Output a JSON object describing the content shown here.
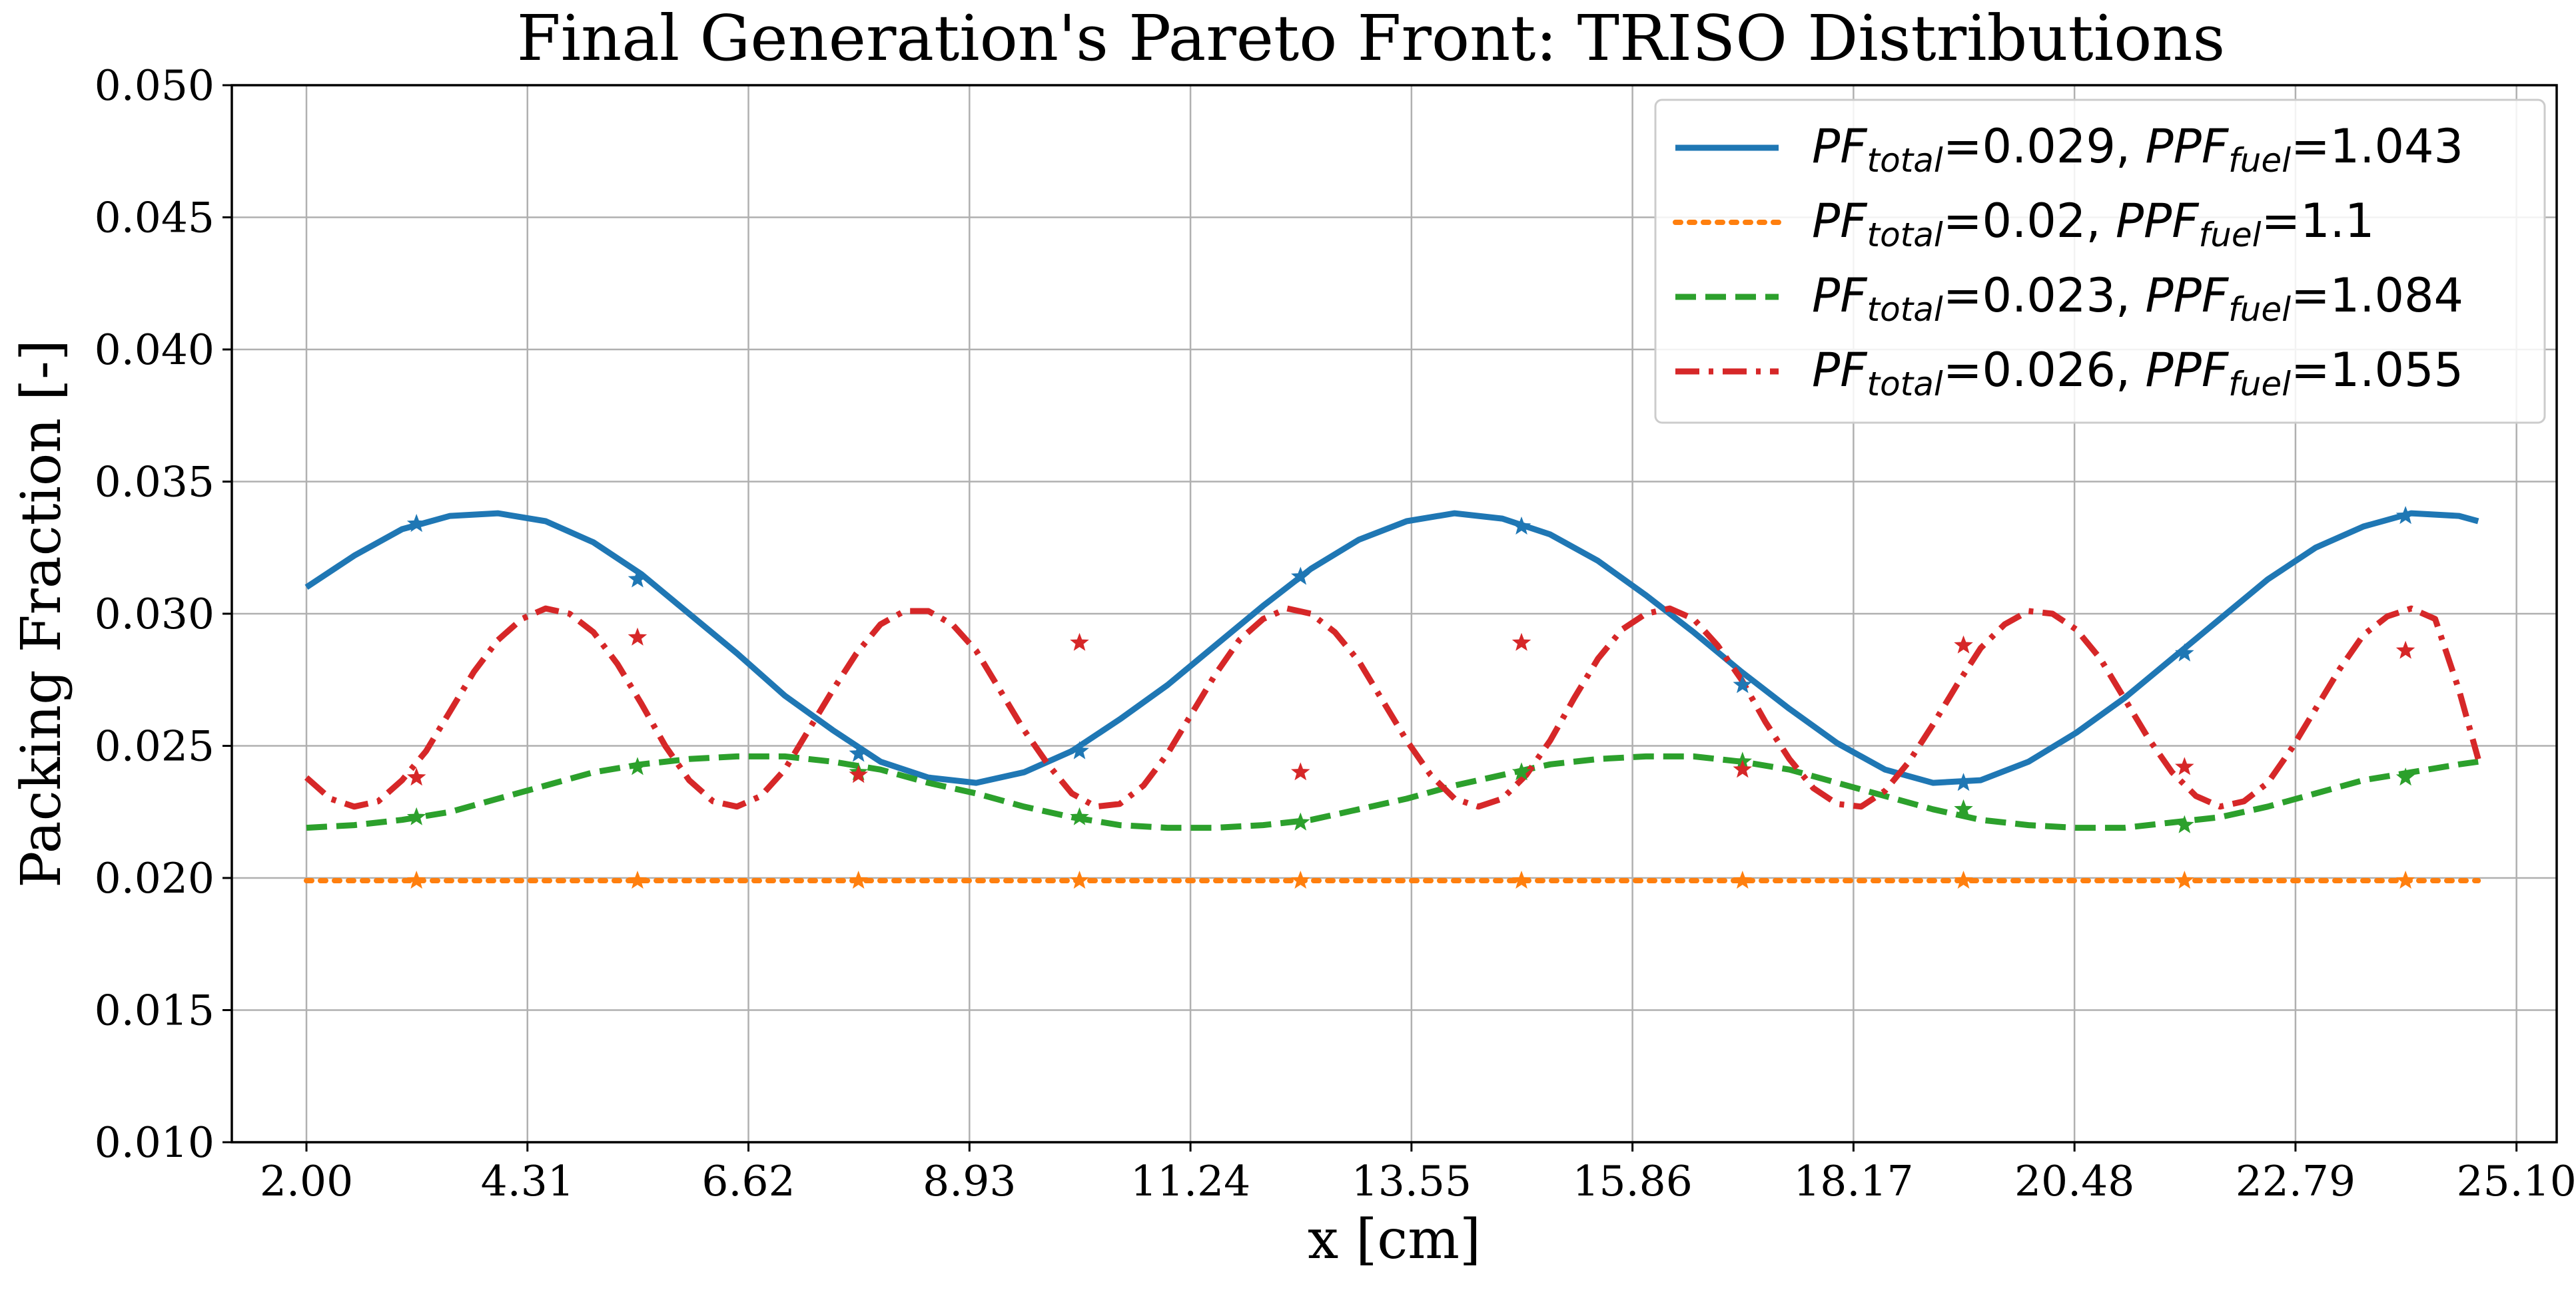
{
  "chart_data": {
    "type": "line",
    "title": "Final Generation's Pareto Front: TRISO Distributions",
    "xlabel": "x [cm]",
    "ylabel": "Packing Fraction [-]",
    "xlim": [
      1.22,
      25.52
    ],
    "ylim": [
      0.01,
      0.05
    ],
    "x_ticks": [
      2.0,
      4.31,
      6.62,
      8.93,
      11.24,
      13.55,
      15.86,
      18.17,
      20.48,
      22.79,
      25.1
    ],
    "x_tick_labels": [
      "2.00",
      "4.31",
      "6.62",
      "8.93",
      "11.24",
      "13.55",
      "15.86",
      "18.17",
      "20.48",
      "22.79",
      "25.10"
    ],
    "y_ticks": [
      0.01,
      0.015,
      0.02,
      0.025,
      0.03,
      0.035,
      0.04,
      0.045,
      0.05
    ],
    "y_tick_labels": [
      "0.010",
      "0.015",
      "0.020",
      "0.025",
      "0.030",
      "0.035",
      "0.040",
      "0.045",
      "0.050"
    ],
    "grid": true,
    "legend_position": "top-right",
    "marker_x": [
      3.15,
      5.46,
      7.77,
      10.08,
      12.39,
      14.7,
      17.01,
      19.32,
      21.63,
      23.94
    ],
    "series": [
      {
        "name_parts": [
          {
            "text": "PF",
            "style": "italic"
          },
          {
            "text": "total",
            "style": "italic-sub"
          },
          {
            "text": "=0.029, ",
            "style": "normal"
          },
          {
            "text": "PPF",
            "style": "italic"
          },
          {
            "text": "fuel",
            "style": "italic-sub"
          },
          {
            "text": "=1.043",
            "style": "normal"
          }
        ],
        "color": "#1f77b4",
        "linestyle": "solid",
        "x": [
          2.0,
          2.5,
          3.0,
          3.5,
          4.0,
          4.5,
          5.0,
          5.5,
          6.0,
          6.5,
          7.0,
          7.5,
          8.0,
          8.5,
          9.0,
          9.5,
          10.0,
          10.5,
          11.0,
          11.5,
          12.0,
          12.5,
          13.0,
          13.5,
          14.0,
          14.5,
          15.0,
          15.5,
          16.0,
          16.5,
          17.0,
          17.5,
          18.0,
          18.5,
          19.0,
          19.5,
          20.0,
          20.5,
          21.0,
          21.5,
          22.0,
          22.5,
          23.0,
          23.5,
          24.0,
          24.5,
          24.7
        ],
        "y": [
          0.031,
          0.0322,
          0.0332,
          0.0337,
          0.0338,
          0.0335,
          0.0327,
          0.0315,
          0.03,
          0.0285,
          0.0269,
          0.0256,
          0.0244,
          0.0238,
          0.0236,
          0.024,
          0.0248,
          0.026,
          0.0273,
          0.0288,
          0.0303,
          0.0317,
          0.0328,
          0.0335,
          0.0338,
          0.0336,
          0.033,
          0.032,
          0.0307,
          0.0293,
          0.0278,
          0.0264,
          0.0251,
          0.0241,
          0.0236,
          0.0237,
          0.0244,
          0.0255,
          0.0268,
          0.0283,
          0.0298,
          0.0313,
          0.0325,
          0.0333,
          0.0338,
          0.0337,
          0.0335
        ],
        "marker_y": [
          0.0334,
          0.0313,
          0.0247,
          0.0248,
          0.0314,
          0.0333,
          0.0273,
          0.0236,
          0.0285,
          0.0337
        ]
      },
      {
        "name_parts": [
          {
            "text": "PF",
            "style": "italic"
          },
          {
            "text": "total",
            "style": "italic-sub"
          },
          {
            "text": "=0.02, ",
            "style": "normal"
          },
          {
            "text": "PPF",
            "style": "italic"
          },
          {
            "text": "fuel",
            "style": "italic-sub"
          },
          {
            "text": "=1.1",
            "style": "normal"
          }
        ],
        "color": "#ff7f0e",
        "linestyle": "dotted",
        "x": [
          2.0,
          24.7
        ],
        "y": [
          0.0199,
          0.0199
        ],
        "marker_y": [
          0.0199,
          0.0199,
          0.0199,
          0.0199,
          0.0199,
          0.0199,
          0.0199,
          0.0199,
          0.0199,
          0.0199
        ]
      },
      {
        "name_parts": [
          {
            "text": "PF",
            "style": "italic"
          },
          {
            "text": "total",
            "style": "italic-sub"
          },
          {
            "text": "=0.023, ",
            "style": "normal"
          },
          {
            "text": "PPF",
            "style": "italic"
          },
          {
            "text": "fuel",
            "style": "italic-sub"
          },
          {
            "text": "=1.084",
            "style": "normal"
          }
        ],
        "color": "#2ca02c",
        "linestyle": "dashed",
        "x": [
          2.0,
          2.5,
          3.0,
          3.5,
          4.0,
          4.5,
          5.0,
          5.5,
          6.0,
          6.5,
          7.0,
          7.5,
          8.0,
          8.5,
          9.0,
          9.5,
          10.0,
          10.5,
          11.0,
          11.5,
          12.0,
          12.5,
          13.0,
          13.5,
          14.0,
          14.5,
          15.0,
          15.5,
          16.0,
          16.5,
          17.0,
          17.5,
          18.0,
          18.5,
          19.0,
          19.5,
          20.0,
          20.5,
          21.0,
          21.5,
          22.0,
          22.5,
          23.0,
          23.5,
          24.0,
          24.5,
          24.7
        ],
        "y": [
          0.0219,
          0.022,
          0.0222,
          0.0225,
          0.023,
          0.0235,
          0.024,
          0.0243,
          0.0245,
          0.0246,
          0.0246,
          0.0244,
          0.0241,
          0.0236,
          0.0232,
          0.0227,
          0.0223,
          0.022,
          0.0219,
          0.0219,
          0.022,
          0.0222,
          0.0226,
          0.023,
          0.0235,
          0.0239,
          0.0243,
          0.0245,
          0.0246,
          0.0246,
          0.0244,
          0.0241,
          0.0236,
          0.0231,
          0.0226,
          0.0222,
          0.022,
          0.0219,
          0.0219,
          0.0221,
          0.0223,
          0.0227,
          0.0232,
          0.0237,
          0.024,
          0.0243,
          0.0244
        ],
        "marker_y": [
          0.0223,
          0.0242,
          0.024,
          0.0223,
          0.0221,
          0.024,
          0.0244,
          0.0226,
          0.022,
          0.0238
        ]
      },
      {
        "name_parts": [
          {
            "text": "PF",
            "style": "italic"
          },
          {
            "text": "total",
            "style": "italic-sub"
          },
          {
            "text": "=0.026, ",
            "style": "normal"
          },
          {
            "text": "PPF",
            "style": "italic"
          },
          {
            "text": "fuel",
            "style": "italic-sub"
          },
          {
            "text": "=1.055",
            "style": "normal"
          }
        ],
        "color": "#d62728",
        "linestyle": "dashdot",
        "x": [
          2.0,
          2.25,
          2.5,
          2.75,
          3.0,
          3.25,
          3.5,
          3.75,
          4.0,
          4.25,
          4.5,
          4.75,
          5.0,
          5.25,
          5.5,
          5.75,
          6.0,
          6.25,
          6.5,
          6.75,
          7.0,
          7.25,
          7.5,
          7.75,
          8.0,
          8.25,
          8.5,
          8.75,
          9.0,
          9.25,
          9.5,
          9.75,
          10.0,
          10.25,
          10.5,
          10.75,
          11.0,
          11.25,
          11.5,
          11.75,
          12.0,
          12.25,
          12.5,
          12.75,
          13.0,
          13.25,
          13.5,
          13.75,
          14.0,
          14.25,
          14.5,
          14.75,
          15.0,
          15.25,
          15.5,
          15.75,
          16.0,
          16.25,
          16.5,
          16.75,
          17.0,
          17.25,
          17.5,
          17.75,
          18.0,
          18.25,
          18.5,
          18.75,
          19.0,
          19.25,
          19.5,
          19.75,
          20.0,
          20.25,
          20.5,
          20.75,
          21.0,
          21.25,
          21.5,
          21.75,
          22.0,
          22.25,
          22.5,
          22.75,
          23.0,
          23.25,
          23.5,
          23.75,
          24.0,
          24.25,
          24.5,
          24.7
        ],
        "y": [
          0.0238,
          0.023,
          0.0227,
          0.0229,
          0.0237,
          0.0248,
          0.0263,
          0.0278,
          0.029,
          0.0298,
          0.0302,
          0.03,
          0.0293,
          0.0281,
          0.0266,
          0.025,
          0.0237,
          0.0229,
          0.0227,
          0.0231,
          0.0241,
          0.0256,
          0.0271,
          0.0285,
          0.0296,
          0.0301,
          0.0301,
          0.0296,
          0.0286,
          0.0271,
          0.0256,
          0.0243,
          0.0232,
          0.0227,
          0.0228,
          0.0235,
          0.0247,
          0.0262,
          0.0277,
          0.029,
          0.0298,
          0.0302,
          0.03,
          0.0293,
          0.0282,
          0.0267,
          0.0252,
          0.0239,
          0.023,
          0.0227,
          0.023,
          0.0239,
          0.0252,
          0.0268,
          0.0283,
          0.0294,
          0.03,
          0.0302,
          0.0298,
          0.0288,
          0.0275,
          0.0259,
          0.0245,
          0.0234,
          0.0228,
          0.0227,
          0.0233,
          0.0244,
          0.0258,
          0.0273,
          0.0287,
          0.0296,
          0.0301,
          0.03,
          0.0294,
          0.0283,
          0.0268,
          0.0253,
          0.024,
          0.0231,
          0.0227,
          0.0229,
          0.0236,
          0.0249,
          0.0264,
          0.0279,
          0.0292,
          0.0299,
          0.0302,
          0.0298,
          0.0271,
          0.0245
        ],
        "marker_y": [
          0.0238,
          0.0291,
          0.0239,
          0.0289,
          0.024,
          0.0289,
          0.0241,
          0.0288,
          0.0242,
          0.0286
        ]
      }
    ]
  }
}
